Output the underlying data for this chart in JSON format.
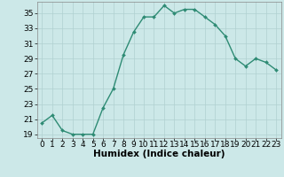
{
  "x": [
    0,
    1,
    2,
    3,
    4,
    5,
    6,
    7,
    8,
    9,
    10,
    11,
    12,
    13,
    14,
    15,
    16,
    17,
    18,
    19,
    20,
    21,
    22,
    23
  ],
  "y": [
    20.5,
    21.5,
    19.5,
    19.0,
    19.0,
    19.0,
    22.5,
    25.0,
    29.5,
    32.5,
    34.5,
    34.5,
    36.0,
    35.0,
    35.5,
    35.5,
    34.5,
    33.5,
    32.0,
    29.0,
    28.0,
    29.0,
    28.5,
    27.5
  ],
  "line_color": "#2e8b74",
  "marker": "D",
  "marker_size": 2.0,
  "bg_color": "#cce8e8",
  "grid_color": "#b0d0d0",
  "xlabel": "Humidex (Indice chaleur)",
  "ylim": [
    18.5,
    36.5
  ],
  "xlim": [
    -0.5,
    23.5
  ],
  "yticks": [
    19,
    21,
    23,
    25,
    27,
    29,
    31,
    33,
    35
  ],
  "xticks": [
    0,
    1,
    2,
    3,
    4,
    5,
    6,
    7,
    8,
    9,
    10,
    11,
    12,
    13,
    14,
    15,
    16,
    17,
    18,
    19,
    20,
    21,
    22,
    23
  ],
  "xlabel_fontsize": 7.5,
  "tick_fontsize": 6.5,
  "linewidth": 1.0
}
